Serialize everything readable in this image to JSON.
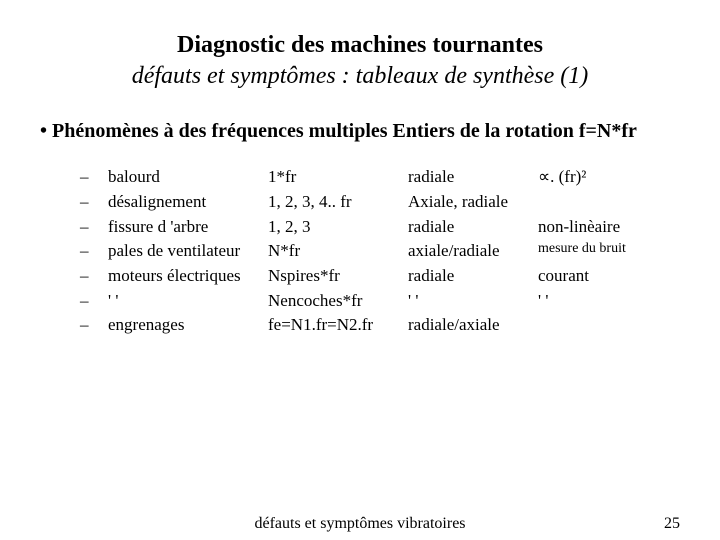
{
  "title": {
    "line1": "Diagnostic des machines tournantes",
    "line2": "défauts et symptômes : tableaux de synthèse (1)"
  },
  "heading": "Phénomènes à des fréquences multiples Entiers de la rotation f=N*fr",
  "rows": [
    {
      "dash": "–",
      "c1": "balourd",
      "c2": "1*fr",
      "c3": "radiale",
      "c4": "∝. (fr)²",
      "c4_small": false
    },
    {
      "dash": "–",
      "c1": "désalignement",
      "c2": "1, 2, 3, 4.. fr",
      "c3": "Axiale, radiale",
      "c4": "",
      "c4_small": false
    },
    {
      "dash": "–",
      "c1": "fissure d 'arbre",
      "c2": "1, 2, 3",
      "c3": "radiale",
      "c4": "non-linèaire",
      "c4_small": false
    },
    {
      "dash": "–",
      "c1": "pales de ventilateur",
      "c2": "N*fr",
      "c3": "axiale/radiale",
      "c4": "mesure du bruit",
      "c4_small": true
    },
    {
      "dash": "–",
      "c1": "moteurs électriques",
      "c2": "Nspires*fr",
      "c3": "radiale",
      "c4": "courant",
      "c4_small": false
    },
    {
      "dash": "–",
      "c1": "   '  '",
      "c2": "Nencoches*fr",
      "c3": "'  '",
      "c4": "'  '",
      "c4_small": false
    },
    {
      "dash": "–",
      "c1": "engrenages",
      "c2": "fe=N1.fr=N2.fr",
      "c3": "radiale/axiale",
      "c4": "",
      "c4_small": false
    }
  ],
  "footer": {
    "center": "défauts et symptômes vibratoires",
    "page": "25"
  },
  "style": {
    "background": "#ffffff",
    "text_color": "#000000",
    "font_family": "Times New Roman",
    "title_fontsize": 24,
    "heading_fontsize": 20,
    "body_fontsize": 17,
    "small_fontsize": 14,
    "footer_fontsize": 16
  }
}
